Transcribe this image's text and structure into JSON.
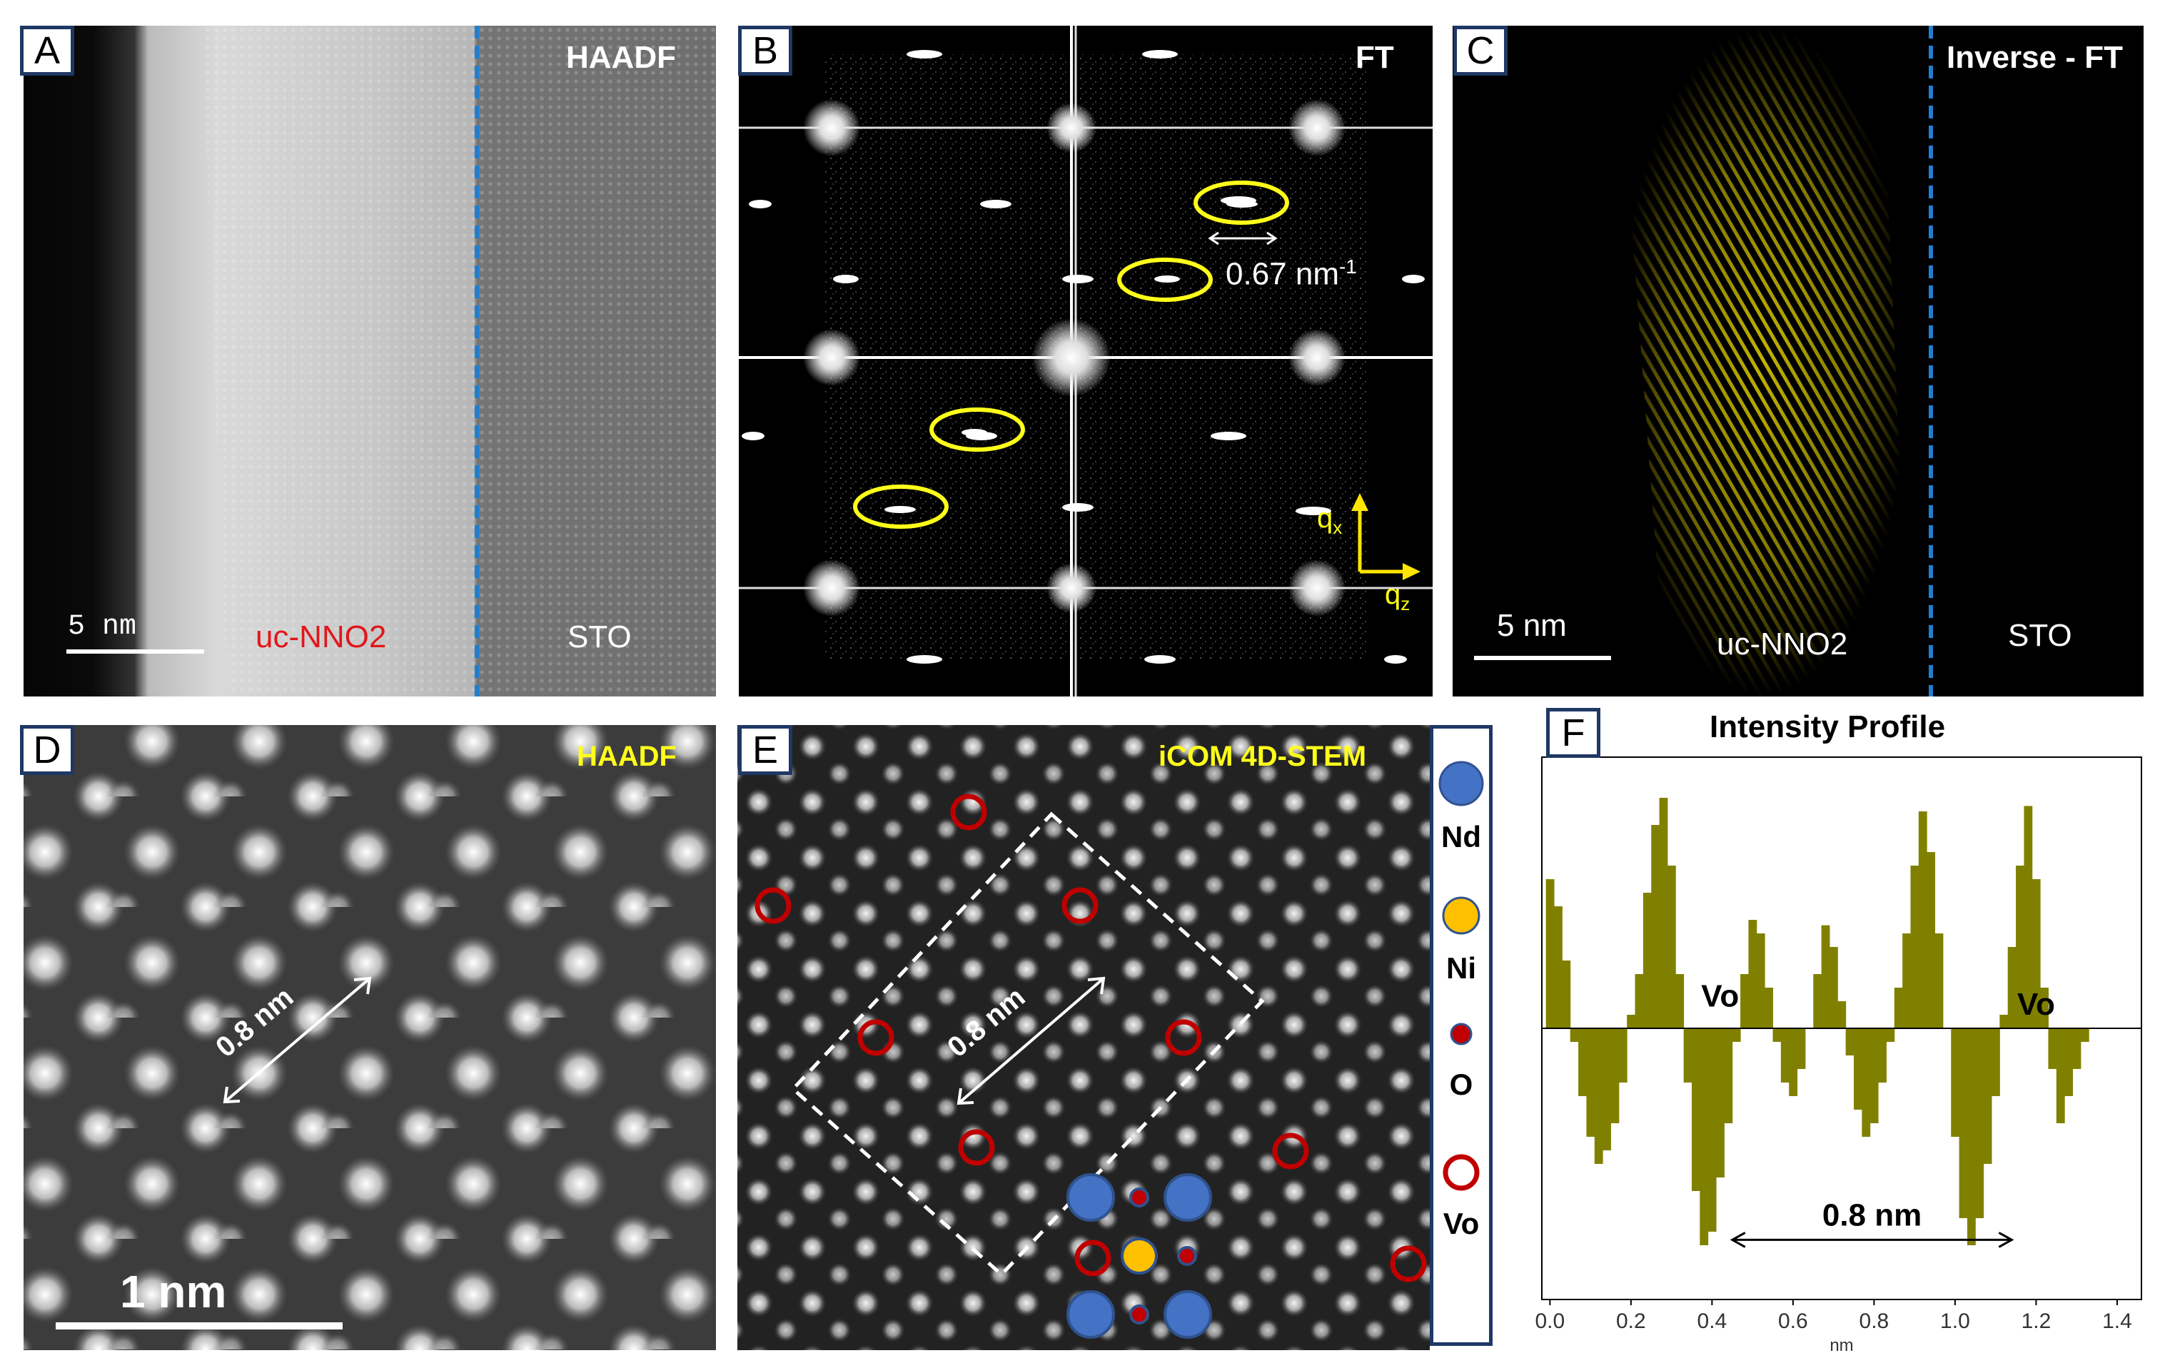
{
  "panel_a": {
    "label": "A",
    "mode": "HAADF",
    "scale": "5 nm",
    "region_left": "uc-NNO2",
    "region_right": "STO"
  },
  "panel_b": {
    "label": "B",
    "mode": "FT",
    "spacing_value": "0.67 nm",
    "spacing_exp": "-1",
    "axis_x": "q",
    "axis_x_sub": "x",
    "axis_z": "q",
    "axis_z_sub": "z"
  },
  "panel_c": {
    "label": "C",
    "mode": "Inverse - FT",
    "scale": "5 nm",
    "region_left": "uc-NNO2",
    "region_right": "STO"
  },
  "panel_d": {
    "label": "D",
    "mode": "HAADF",
    "distance": "0.8 nm",
    "scale": "1 nm"
  },
  "panel_e": {
    "label": "E",
    "mode": "iCOM 4D-STEM",
    "distance": "0.8 nm"
  },
  "legend": {
    "items": [
      {
        "name": "Nd",
        "color": "#4472c4"
      },
      {
        "name": "Ni",
        "color": "#ffc000"
      },
      {
        "name": "O",
        "color": "#c00000"
      },
      {
        "name": "Vo",
        "color": "#c00000"
      }
    ]
  },
  "chart_data": {
    "type": "bar",
    "title": "Intensity Profile",
    "xlabel": "nm",
    "xlim": [
      -0.02,
      1.46
    ],
    "ylim": [
      -1.0,
      1.0
    ],
    "xticks": [
      "0.0",
      "0.2",
      "0.4",
      "0.6",
      "0.8",
      "1.0",
      "1.2",
      "1.4"
    ],
    "bar_color": "#808000",
    "annotations": [
      "Vo",
      "Vo",
      "0.8 nm"
    ],
    "x": [
      0.0,
      0.02,
      0.04,
      0.06,
      0.08,
      0.1,
      0.12,
      0.14,
      0.16,
      0.18,
      0.2,
      0.22,
      0.24,
      0.26,
      0.28,
      0.3,
      0.32,
      0.34,
      0.36,
      0.38,
      0.4,
      0.42,
      0.44,
      0.46,
      0.48,
      0.5,
      0.52,
      0.54,
      0.56,
      0.58,
      0.6,
      0.62,
      0.64,
      0.66,
      0.68,
      0.7,
      0.72,
      0.74,
      0.76,
      0.78,
      0.8,
      0.82,
      0.84,
      0.86,
      0.88,
      0.9,
      0.92,
      0.94,
      0.96,
      0.98,
      1.0,
      1.02,
      1.04,
      1.06,
      1.08,
      1.1,
      1.12,
      1.14,
      1.16,
      1.18,
      1.2,
      1.22,
      1.24,
      1.26,
      1.28,
      1.3,
      1.32,
      1.34,
      1.36,
      1.38,
      1.4,
      1.42,
      1.44
    ],
    "values": [
      0.55,
      0.45,
      0.25,
      -0.05,
      -0.25,
      -0.4,
      -0.5,
      -0.45,
      -0.35,
      -0.2,
      0.05,
      0.2,
      0.5,
      0.75,
      0.85,
      0.6,
      0.2,
      -0.2,
      -0.6,
      -0.8,
      -0.75,
      -0.55,
      -0.35,
      -0.05,
      0.2,
      0.4,
      0.35,
      0.15,
      -0.05,
      -0.2,
      -0.25,
      -0.15,
      0.0,
      0.2,
      0.38,
      0.3,
      0.1,
      -0.1,
      -0.3,
      -0.4,
      -0.35,
      -0.2,
      -0.05,
      0.15,
      0.35,
      0.6,
      0.8,
      0.65,
      0.35,
      0.0,
      -0.4,
      -0.7,
      -0.8,
      -0.7,
      -0.5,
      -0.25,
      0.05,
      0.3,
      0.6,
      0.82,
      0.55,
      0.15,
      -0.15,
      -0.35,
      -0.25,
      -0.15,
      -0.05,
      0.0,
      0.0,
      0.0,
      0.0,
      0.0,
      0.0
    ]
  }
}
